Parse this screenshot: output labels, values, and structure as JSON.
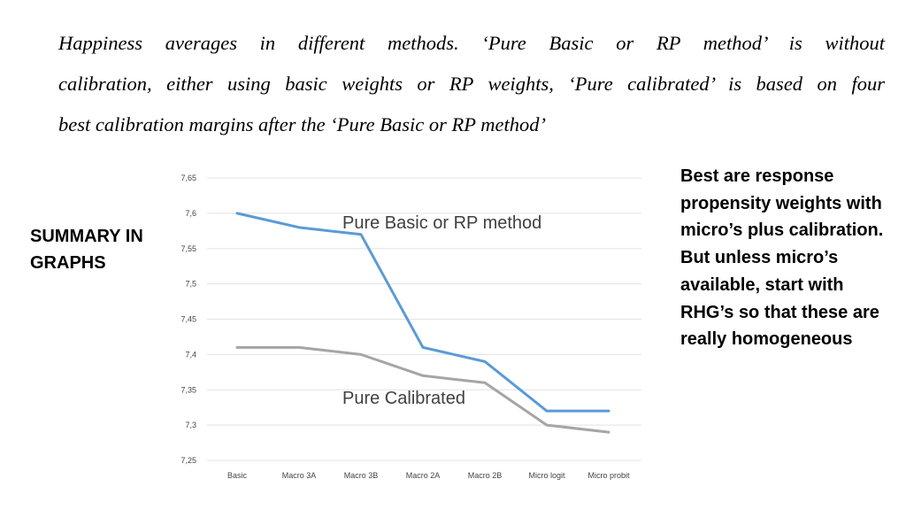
{
  "caption": {
    "lines": [
      "Happiness averages in different methods. ‘Pure Basic or RP method’ is without",
      "calibration, either using basic weights or RP weights, ‘Pure calibrated’ is based on four",
      "best calibration margins after the ‘Pure Basic or RP method’"
    ]
  },
  "summary_label": "SUMMARY IN GRAPHS",
  "side_note": "Best are response propensity weights with micro’s plus calibration. But unless micro’s available, start with RHG’s so that these are really homogeneous",
  "chart_data": {
    "type": "line",
    "categories": [
      "Basic",
      "Macro 3A",
      "Macro 3B",
      "Macro 2A",
      "Macro 2B",
      "Micro logit",
      "Micro probit"
    ],
    "ylim": [
      7.25,
      7.65
    ],
    "yticks": [
      "7,25",
      "7,3",
      "7,35",
      "7,4",
      "7,45",
      "7,5",
      "7,55",
      "7,6",
      "7,65"
    ],
    "grid": true,
    "series": [
      {
        "name": "Pure Basic or RP method",
        "color": "#5b9bd5",
        "values": [
          7.6,
          7.58,
          7.57,
          7.41,
          7.39,
          7.32,
          7.32
        ]
      },
      {
        "name": "Pure Calibrated",
        "color": "#a5a5a5",
        "values": [
          7.41,
          7.41,
          7.4,
          7.37,
          7.36,
          7.3,
          7.29
        ]
      }
    ]
  }
}
